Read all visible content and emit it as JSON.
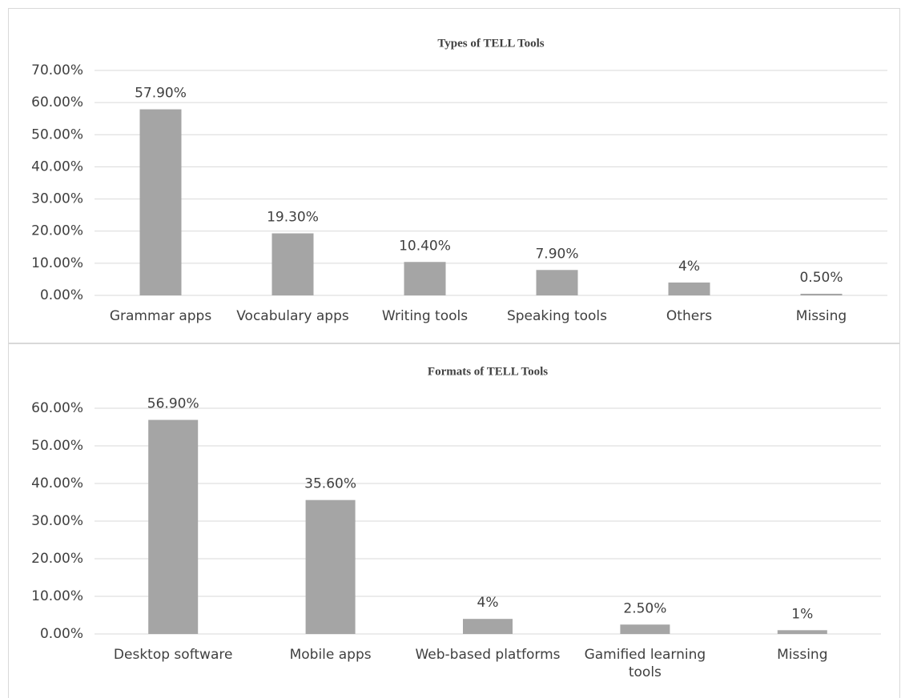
{
  "chart_data": [
    {
      "type": "bar",
      "title": "Types of TELL Tools",
      "categories": [
        "Grammar apps",
        "Vocabulary apps",
        "Writing tools",
        "Speaking tools",
        "Others",
        "Missing"
      ],
      "values": [
        57.9,
        19.3,
        10.4,
        7.9,
        4,
        0.5
      ],
      "value_labels": [
        "57.90%",
        "19.30%",
        "10.40%",
        "7.90%",
        "4%",
        "0.50%"
      ],
      "color": "#a5a5a5",
      "ylim": [
        0,
        70
      ],
      "yticks": [
        {
          "value": 0,
          "label": "0.00%"
        },
        {
          "value": 10,
          "label": "10.00%"
        },
        {
          "value": 20,
          "label": "20.00%"
        },
        {
          "value": 30,
          "label": "30.00%"
        },
        {
          "value": 40,
          "label": "40.00%"
        },
        {
          "value": 50,
          "label": "50.00%"
        },
        {
          "value": 60,
          "label": "60.00%"
        },
        {
          "value": 70,
          "label": "70.00%"
        }
      ],
      "grid": true
    },
    {
      "type": "bar",
      "title": "Formats of TELL Tools",
      "categories": [
        "Desktop software",
        "Mobile apps",
        "Web-based platforms",
        "Gamified learning tools",
        "Missing"
      ],
      "values": [
        56.9,
        35.6,
        4,
        2.5,
        1
      ],
      "value_labels": [
        "56.90%",
        "35.60%",
        "4%",
        "2.50%",
        "1%"
      ],
      "color": "#a5a5a5",
      "ylim": [
        0,
        60
      ],
      "yticks": [
        {
          "value": 0,
          "label": "0.00%"
        },
        {
          "value": 10,
          "label": "10.00%"
        },
        {
          "value": 20,
          "label": "20.00%"
        },
        {
          "value": 30,
          "label": "30.00%"
        },
        {
          "value": 40,
          "label": "40.00%"
        },
        {
          "value": 50,
          "label": "50.00%"
        },
        {
          "value": 60,
          "label": "60.00%"
        }
      ],
      "grid": true
    }
  ]
}
